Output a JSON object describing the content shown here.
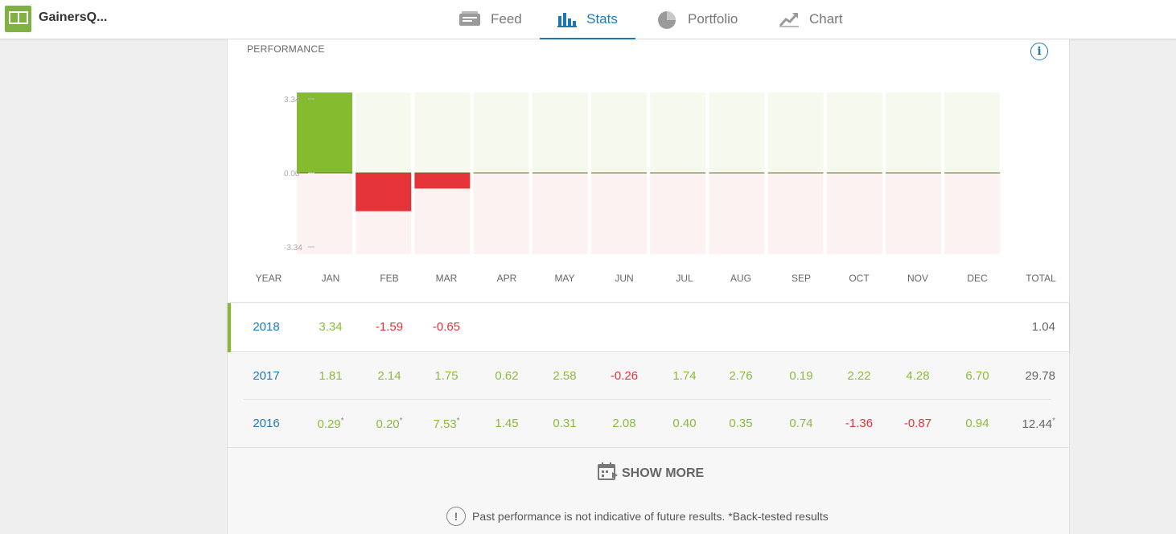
{
  "header": {
    "brand": "GainersQ...",
    "nav": [
      {
        "label": "Feed",
        "icon": "feed-icon",
        "active": false
      },
      {
        "label": "Stats",
        "icon": "stats-icon",
        "active": true
      },
      {
        "label": "Portfolio",
        "icon": "portfolio-icon",
        "active": false
      },
      {
        "label": "Chart",
        "icon": "chart-icon",
        "active": false
      }
    ]
  },
  "performance": {
    "label": "PERFORMANCE",
    "info_icon_text": "i"
  },
  "chart_data": {
    "type": "bar",
    "categories": [
      "JAN",
      "FEB",
      "MAR",
      "APR",
      "MAY",
      "JUN",
      "JUL",
      "AUG",
      "SEP",
      "OCT",
      "NOV",
      "DEC"
    ],
    "values": [
      3.34,
      -1.59,
      -0.65,
      0,
      0,
      0,
      0,
      0,
      0,
      0,
      0,
      0
    ],
    "yticks": [
      "3.34",
      "0.00",
      "-3.34"
    ],
    "ylim": [
      -3.34,
      3.34
    ],
    "colors": {
      "positive": "#85bb2f",
      "negative": "#e5333a",
      "pos_bg": "#f5f9ee",
      "neg_bg": "#fdf2f2",
      "baseline": "#5a7a20"
    }
  },
  "table": {
    "headers": [
      "YEAR",
      "JAN",
      "FEB",
      "MAR",
      "APR",
      "MAY",
      "JUN",
      "JUL",
      "AUG",
      "SEP",
      "OCT",
      "NOV",
      "DEC",
      "TOTAL"
    ],
    "rows": [
      {
        "year": "2018",
        "months": [
          "3.34",
          "-1.59",
          "-0.65",
          "",
          "",
          "",
          "",
          "",
          "",
          "",
          "",
          ""
        ],
        "total": "1.04"
      },
      {
        "year": "2017",
        "months": [
          "1.81",
          "2.14",
          "1.75",
          "0.62",
          "2.58",
          "-0.26",
          "1.74",
          "2.76",
          "0.19",
          "2.22",
          "4.28",
          "6.70"
        ],
        "total": "29.78"
      },
      {
        "year": "2016",
        "months": [
          "0.29",
          "0.20",
          "7.53",
          "1.45",
          "0.31",
          "2.08",
          "0.40",
          "0.35",
          "0.74",
          "-1.36",
          "-0.87",
          "0.94"
        ],
        "total": "12.44"
      }
    ],
    "asterisk": "*",
    "starred_2016": [
      0,
      1,
      2
    ]
  },
  "show_more": {
    "label": "SHOW MORE"
  },
  "disclaimer": {
    "icon_text": "!",
    "text": "Past performance is not indicative of future results. *Back-tested results"
  }
}
